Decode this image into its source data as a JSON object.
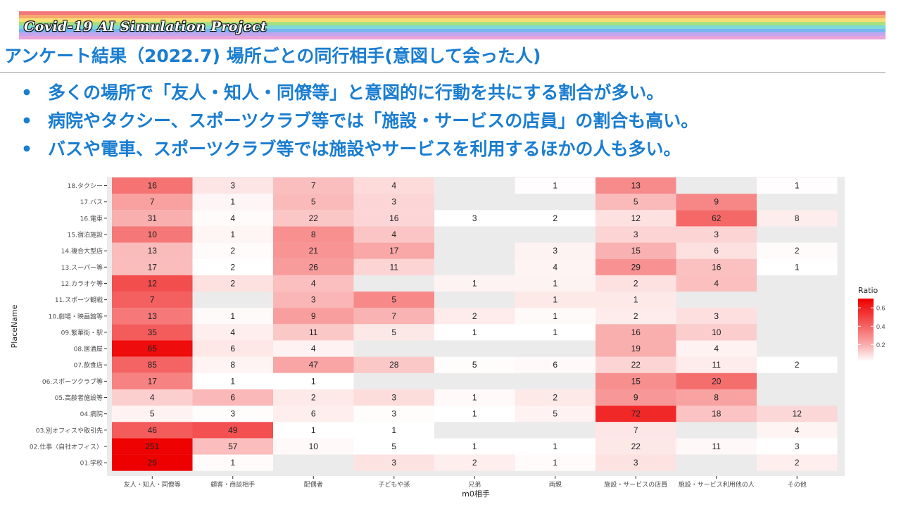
{
  "banner": {
    "title": "Covid-19 AI Simulation Project",
    "stripe_colors": [
      "#f2777a",
      "#f6a96d",
      "#f7dd74",
      "#a8e07e",
      "#7ed9d6",
      "#78b5f0",
      "#c3a6ef",
      "#e8a4da"
    ]
  },
  "page_title": "アンケート結果（2022.7) 場所ごとの同行相手(意図して会った人)",
  "bullets": [
    "多くの場所で「友人・知人・同僚等」と意図的に行動を共にする割合が多い。",
    "病院やタクシー、スポーツクラブ等では「施設・サービスの店員」の割合も高い。",
    "バスや電車、スポーツクラブ等では施設やサービスを利用するほかの人も多い。"
  ],
  "chart_data": {
    "type": "heatmap",
    "xlabel": "m0相手",
    "ylabel": "PlaceName",
    "x_categories": [
      "友人・知人・同僚等",
      "顧客・商談相手",
      "配偶者",
      "子どもや孫",
      "兄弟",
      "両親",
      "施設・サービスの店員",
      "施設・サービス利用他の人",
      "その他"
    ],
    "y_categories": [
      "18.タクシー",
      "17.バス",
      "16.電車",
      "15.宿泊施設",
      "14.複合大型店",
      "13.スーパー等",
      "12.カラオケ等",
      "11.スポーツ観戦",
      "10.劇場・映画館等",
      "09.繁華街・駅",
      "08.居酒屋",
      "07.飲食店",
      "06.スポーツクラブ等",
      "05.高齢者施設等",
      "04.病院",
      "03.別オフィスや取引先",
      "02.仕事（自社オフィス）",
      "01.学校"
    ],
    "values": [
      [
        16,
        3,
        7,
        4,
        null,
        1,
        13,
        null,
        1
      ],
      [
        7,
        1,
        5,
        3,
        null,
        null,
        5,
        9,
        null
      ],
      [
        31,
        4,
        22,
        16,
        3,
        2,
        12,
        62,
        8
      ],
      [
        10,
        1,
        8,
        4,
        null,
        null,
        3,
        3,
        null
      ],
      [
        13,
        2,
        21,
        17,
        null,
        3,
        15,
        6,
        2
      ],
      [
        17,
        2,
        26,
        11,
        null,
        4,
        29,
        16,
        1
      ],
      [
        12,
        2,
        4,
        null,
        1,
        1,
        2,
        4,
        null
      ],
      [
        7,
        null,
        3,
        5,
        null,
        1,
        1,
        null,
        null
      ],
      [
        13,
        1,
        9,
        7,
        2,
        1,
        2,
        3,
        null
      ],
      [
        35,
        4,
        11,
        5,
        1,
        1,
        16,
        10,
        null
      ],
      [
        65,
        6,
        4,
        null,
        null,
        null,
        19,
        4,
        null
      ],
      [
        85,
        8,
        47,
        28,
        5,
        6,
        22,
        11,
        2
      ],
      [
        17,
        1,
        1,
        null,
        null,
        null,
        15,
        20,
        null
      ],
      [
        4,
        6,
        2,
        3,
        1,
        2,
        9,
        8,
        null
      ],
      [
        5,
        3,
        6,
        3,
        1,
        5,
        72,
        18,
        12
      ],
      [
        46,
        49,
        1,
        1,
        null,
        null,
        7,
        null,
        4
      ],
      [
        251,
        57,
        10,
        5,
        1,
        1,
        22,
        11,
        3
      ],
      [
        29,
        1,
        null,
        3,
        2,
        1,
        3,
        null,
        2
      ]
    ],
    "legend": {
      "title": "Ratio",
      "ticks": [
        "0.6",
        "0.4",
        "0.2"
      ],
      "tick_values": [
        0.6,
        0.4,
        0.2
      ],
      "range": [
        0.02,
        0.7
      ],
      "placement": "right"
    },
    "color_low": "#ffffff",
    "color_high": "#ee0000",
    "background": "#ebebeb"
  }
}
